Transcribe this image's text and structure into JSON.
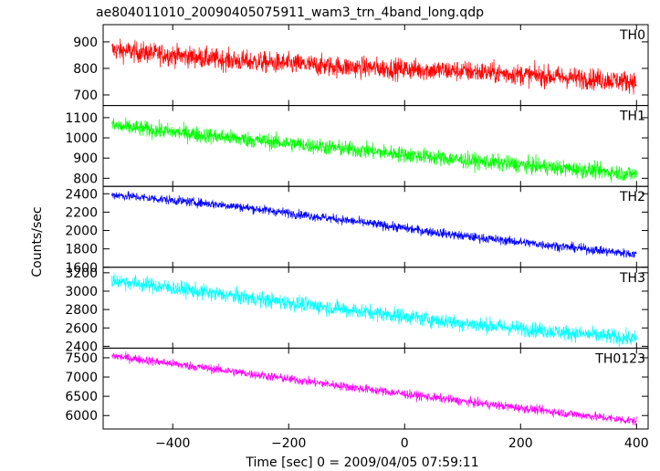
{
  "chart_data": {
    "type": "line",
    "title": "ae804011010_20090405075911_wam3_trn_4band_long.qdp",
    "xlabel": "Time [sec] 0 = 2009/04/05 07:59:11",
    "ylabel": "Counts/sec",
    "xlim": [
      -520,
      420
    ],
    "xticks": [
      -400,
      -200,
      0,
      200,
      400
    ],
    "data_xrange": [
      -505,
      400
    ],
    "grid": false,
    "series": [
      {
        "name": "TH0",
        "color": "#ff0000",
        "ylim": [
          660,
          965
        ],
        "yticks": [
          700,
          800,
          900
        ],
        "trend": [
          [
            -505,
            870
          ],
          [
            -300,
            830
          ],
          [
            -100,
            805
          ],
          [
            100,
            790
          ],
          [
            400,
            750
          ]
        ],
        "noise": 28
      },
      {
        "name": "TH1",
        "color": "#00ff00",
        "ylim": [
          760,
          1160
        ],
        "yticks": [
          800,
          900,
          1000,
          1100
        ],
        "trend": [
          [
            -505,
            1060
          ],
          [
            -300,
            1000
          ],
          [
            -100,
            945
          ],
          [
            100,
            890
          ],
          [
            400,
            820
          ]
        ],
        "noise": 28
      },
      {
        "name": "TH2",
        "color": "#0000ff",
        "ylim": [
          1600,
          2480
        ],
        "yticks": [
          1600,
          1800,
          2000,
          2200,
          2400
        ],
        "trend": [
          [
            -505,
            2390
          ],
          [
            -300,
            2270
          ],
          [
            -100,
            2110
          ],
          [
            100,
            1940
          ],
          [
            400,
            1740
          ]
        ],
        "noise": 35
      },
      {
        "name": "TH3",
        "color": "#00ffff",
        "ylim": [
          2380,
          3260
        ],
        "yticks": [
          2400,
          2600,
          2800,
          3000,
          3200
        ],
        "trend": [
          [
            -505,
            3120
          ],
          [
            -300,
            2950
          ],
          [
            -100,
            2800
          ],
          [
            100,
            2650
          ],
          [
            400,
            2480
          ]
        ],
        "noise": 60
      },
      {
        "name": "TH0123",
        "color": "#ff00ff",
        "ylim": [
          5650,
          7750
        ],
        "yticks": [
          6000,
          6500,
          7000,
          7500
        ],
        "trend": [
          [
            -505,
            7550
          ],
          [
            -300,
            7150
          ],
          [
            -100,
            6750
          ],
          [
            100,
            6370
          ],
          [
            400,
            5850
          ]
        ],
        "noise": 80
      }
    ]
  }
}
